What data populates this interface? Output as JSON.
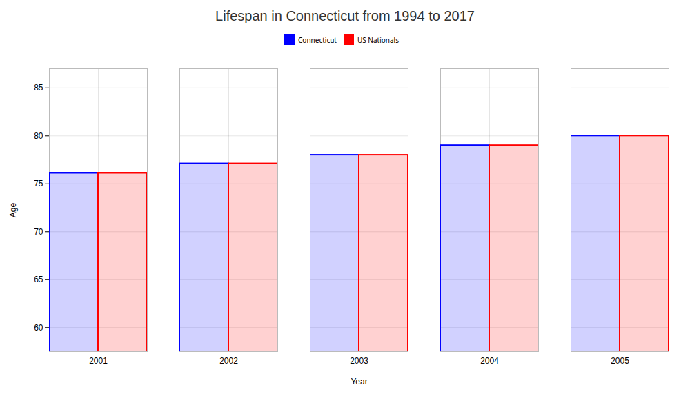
{
  "chart_data": {
    "type": "bar",
    "title": "Lifespan in Connecticut from 1994 to 2017",
    "xlabel": "Year",
    "ylabel": "Age",
    "categories": [
      "2001",
      "2002",
      "2003",
      "2004",
      "2005"
    ],
    "series": [
      {
        "name": "Connecticut",
        "color": "#0000ff",
        "values": [
          76.1,
          77.1,
          78.0,
          79.0,
          80.0
        ]
      },
      {
        "name": "US Nationals",
        "color": "#ff0000",
        "values": [
          76.1,
          77.1,
          78.0,
          79.0,
          80.0
        ]
      }
    ],
    "ylim": [
      57.5,
      87
    ],
    "yticks": [
      60,
      65,
      70,
      75,
      80,
      85
    ],
    "grid": true,
    "legend": "top"
  }
}
